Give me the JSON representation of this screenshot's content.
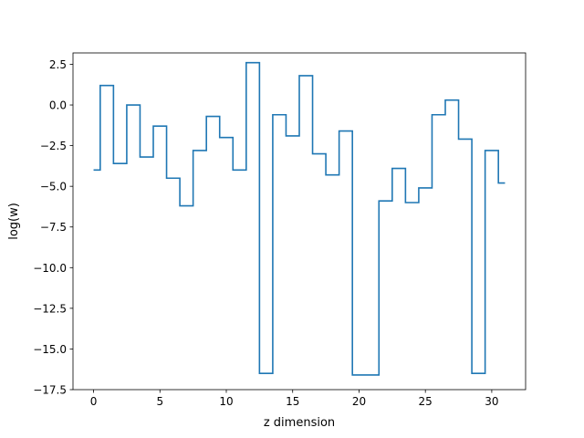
{
  "chart_data": {
    "type": "line",
    "drawstyle": "steps-mid",
    "title": "",
    "xlabel": "z dimension",
    "ylabel": "log(w)",
    "xlim": [
      -1.55,
      32.55
    ],
    "ylim": [
      -17.5,
      3.2
    ],
    "xticks": [
      0,
      5,
      10,
      15,
      20,
      25,
      30
    ],
    "yticks": [
      2.5,
      0.0,
      -2.5,
      -5.0,
      -7.5,
      -10.0,
      -12.5,
      -15.0,
      -17.5
    ],
    "ytick_labels": [
      "2.5",
      "0.0",
      "−2.5",
      "−5.0",
      "−7.5",
      "−10.0",
      "−12.5",
      "−15.0",
      "−17.5"
    ],
    "grid": false,
    "series": [
      {
        "color": "#1f77b4",
        "x": [
          0,
          1,
          2,
          3,
          4,
          5,
          6,
          7,
          8,
          9,
          10,
          11,
          12,
          13,
          14,
          15,
          16,
          17,
          18,
          19,
          20,
          21,
          22,
          23,
          24,
          25,
          26,
          27,
          28,
          29,
          30,
          31
        ],
        "values": [
          -4.0,
          1.2,
          -3.6,
          0.0,
          -3.2,
          -1.3,
          -4.5,
          -6.2,
          -2.8,
          -0.7,
          -2.0,
          -4.0,
          2.6,
          -16.5,
          -0.6,
          -1.9,
          1.8,
          -3.0,
          -4.3,
          -1.6,
          -16.6,
          -16.6,
          -5.9,
          -3.9,
          -6.0,
          -5.1,
          -0.6,
          0.3,
          -2.1,
          -16.5,
          -2.8,
          -4.8
        ]
      }
    ]
  }
}
